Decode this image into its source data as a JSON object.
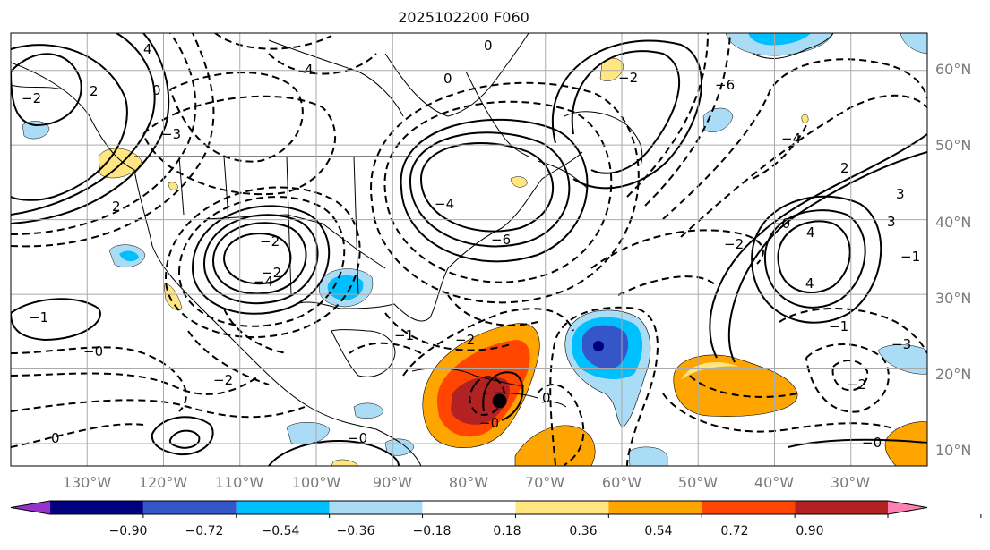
{
  "title": "2025102200 F060",
  "map": {
    "projection": "equirectangular",
    "lon_range": [
      -140,
      -20
    ],
    "lat_range": [
      7,
      65
    ],
    "lat_labels": [
      {
        "lat": 60,
        "text": "60°N"
      },
      {
        "lat": 50,
        "text": "50°N"
      },
      {
        "lat": 40,
        "text": "40°N"
      },
      {
        "lat": 30,
        "text": "30°N"
      },
      {
        "lat": 20,
        "text": "20°N"
      },
      {
        "lat": 10,
        "text": "10°N"
      }
    ],
    "lon_labels": [
      {
        "lon": -130,
        "text": "130°W"
      },
      {
        "lon": -120,
        "text": "120°W"
      },
      {
        "lon": -110,
        "text": "110°W"
      },
      {
        "lon": -100,
        "text": "100°W"
      },
      {
        "lon": -90,
        "text": "90°W"
      },
      {
        "lon": -80,
        "text": "80°W"
      },
      {
        "lon": -70,
        "text": "70°W"
      },
      {
        "lon": -60,
        "text": "60°W"
      },
      {
        "lon": -50,
        "text": "50°W"
      },
      {
        "lon": -40,
        "text": "40°W"
      },
      {
        "lon": -30,
        "text": "30°W"
      }
    ],
    "storm_center": {
      "lon": -76,
      "lat": 15.7
    }
  },
  "colorbar": {
    "ticks": [
      "−0.90",
      "−0.72",
      "−0.54",
      "−0.36",
      "−0.18",
      "0.18",
      "0.36",
      "0.54",
      "0.72",
      "0.90"
    ],
    "colors": [
      "#9932cc",
      "#000080",
      "#3456c8",
      "#00bfff",
      "#aadcf6",
      "#ffffff",
      "#ffe680",
      "#ffa500",
      "#ff4500",
      "#b22222",
      "#ff80b0"
    ]
  },
  "contour_labels": [
    "4",
    "4",
    "2",
    "2",
    "0",
    "0",
    "0",
    "−4",
    "−2",
    "−2",
    "−6",
    "−4",
    "−2",
    "2",
    "3",
    "4",
    "−3",
    "−2",
    "−1",
    "−0",
    "0",
    "−2",
    "−0",
    "−1",
    "−2",
    "−4",
    "−6",
    "−2",
    "−0",
    "−1",
    "−3",
    "3",
    "4",
    "−0",
    "0",
    "−0",
    "−1",
    "−2"
  ]
}
